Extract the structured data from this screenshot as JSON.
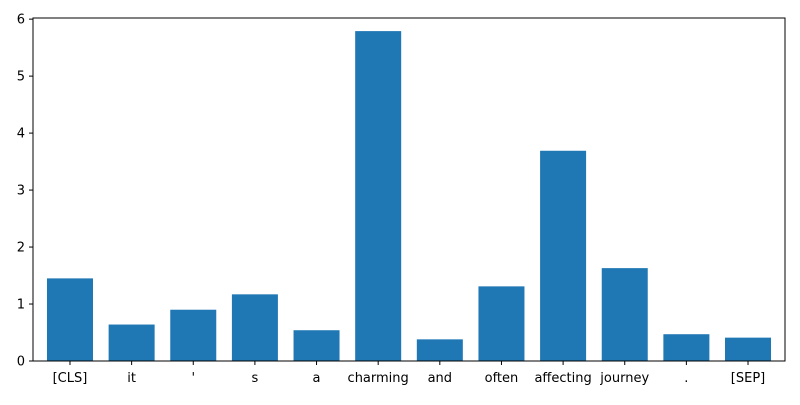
{
  "chart_data": {
    "type": "bar",
    "categories": [
      "[CLS]",
      "it",
      "'",
      "s",
      "a",
      "charming",
      "and",
      "often",
      "affecting",
      "journey",
      ".",
      "[SEP]"
    ],
    "values": [
      1.45,
      0.64,
      0.9,
      1.17,
      0.54,
      5.79,
      0.38,
      1.31,
      3.69,
      1.63,
      0.47,
      0.41
    ],
    "yticks": [
      0,
      1,
      2,
      3,
      4,
      5,
      6
    ],
    "ylim": [
      0,
      6.02
    ],
    "title": "",
    "xlabel": "",
    "ylabel": "",
    "grid": false,
    "bar_color": "#1f77b4"
  }
}
